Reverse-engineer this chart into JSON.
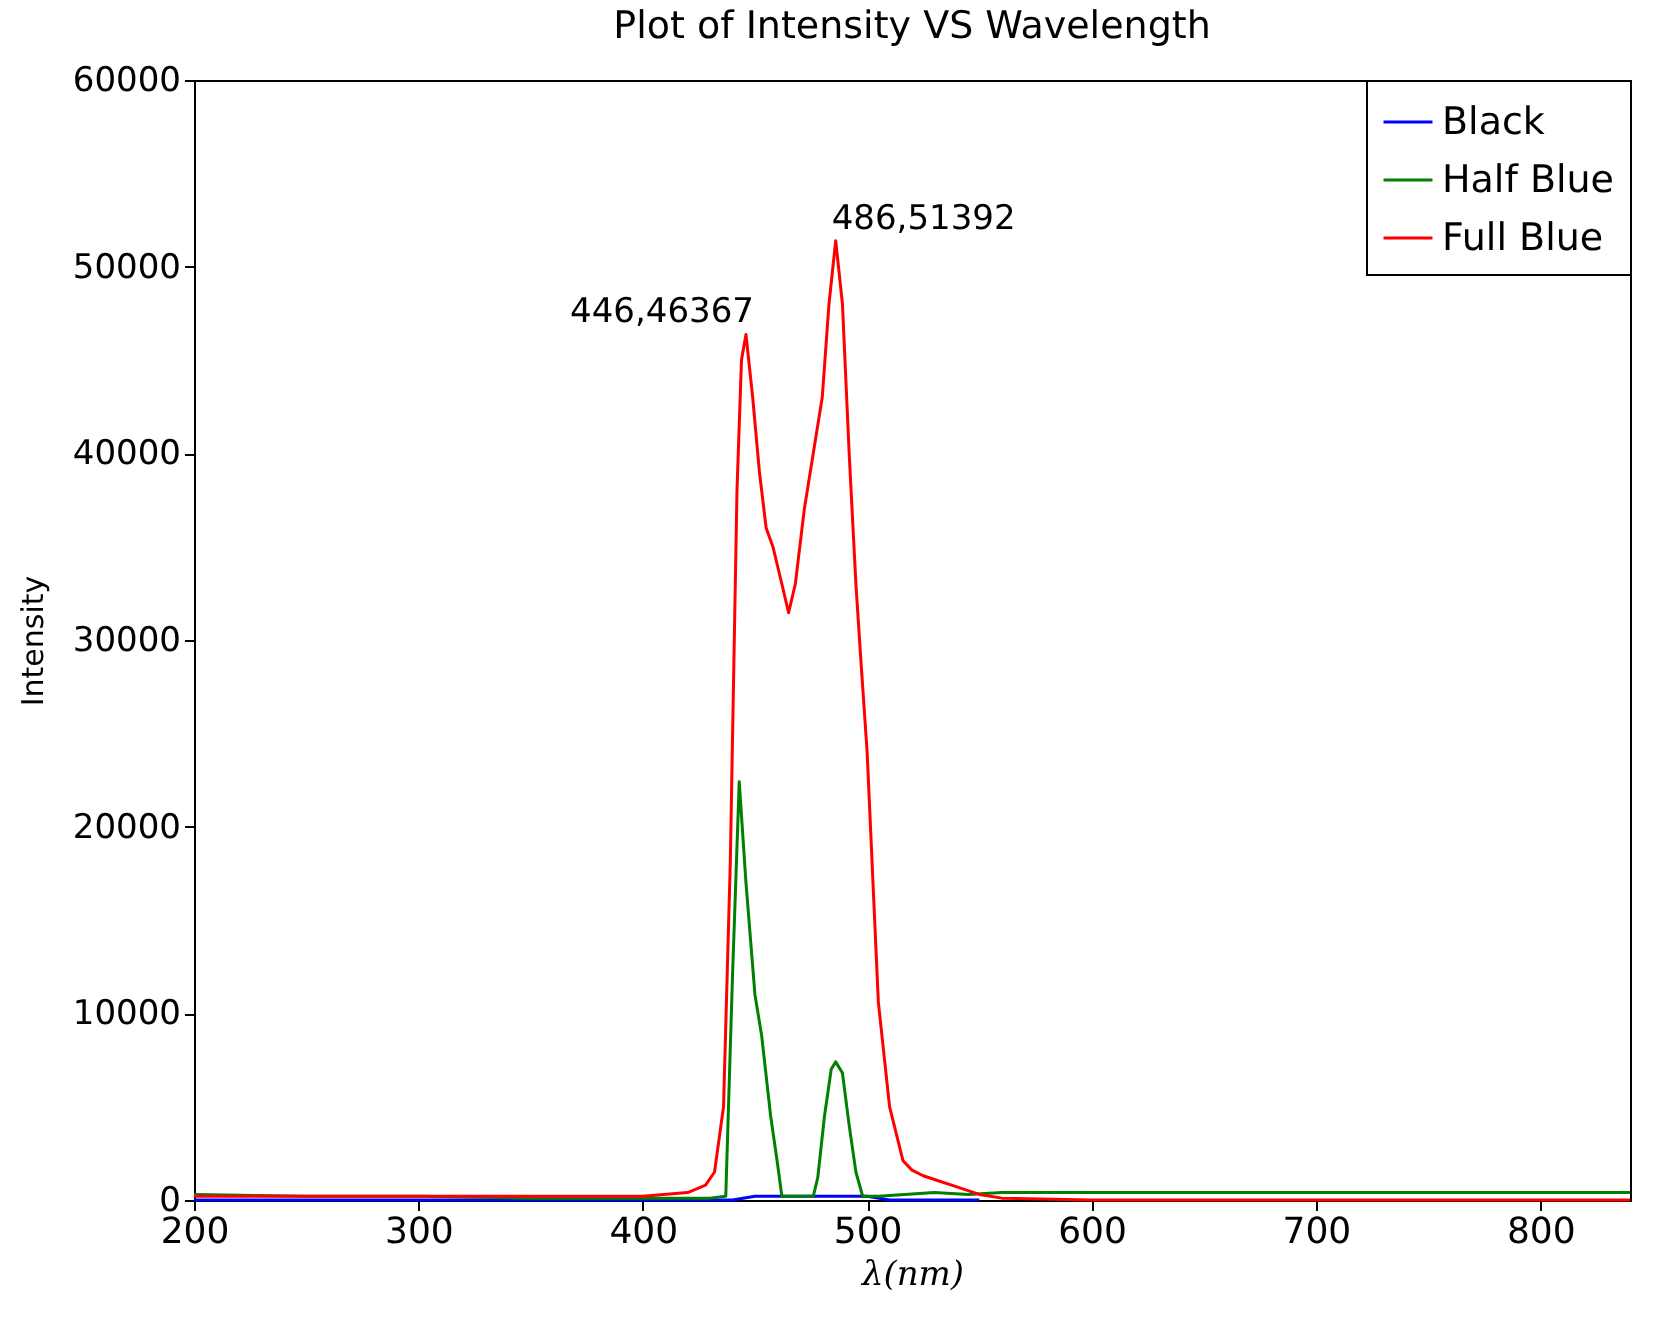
{
  "chart_data": {
    "type": "line",
    "title": "Plot of Intensity VS Wavelength",
    "xlabel": "λ(nm)",
    "ylabel": "Intensity",
    "xlim": [
      200,
      840
    ],
    "ylim": [
      0,
      60000
    ],
    "xticks": [
      200,
      300,
      400,
      500,
      600,
      700,
      800
    ],
    "yticks": [
      0,
      10000,
      20000,
      30000,
      40000,
      50000,
      60000
    ],
    "grid": false,
    "legend": "top right",
    "marker": "none",
    "line_style": "solid",
    "annotations": [
      {
        "text": "446,46367",
        "x": 446,
        "y": 46367
      },
      {
        "text": "486,51392",
        "x": 486,
        "y": 51392
      }
    ],
    "series": [
      {
        "name": "Black",
        "color": "#0000ff",
        "x": [
          200,
          300,
          400,
          430,
          440,
          450,
          470,
          490,
          500,
          510,
          550
        ],
        "values": [
          0,
          0,
          0,
          0,
          0,
          200,
          200,
          200,
          200,
          0,
          0
        ]
      },
      {
        "name": "Half Blue",
        "color": "#008000",
        "x": [
          200,
          250,
          300,
          350,
          400,
          430,
          437,
          440,
          443,
          446,
          450,
          453,
          457,
          460,
          462,
          470,
          476,
          478,
          481,
          484,
          486,
          489,
          492,
          495,
          498,
          505,
          530,
          545,
          560,
          600,
          700,
          840
        ],
        "values": [
          300,
          200,
          200,
          100,
          100,
          100,
          200,
          12000,
          22400,
          17000,
          11000,
          8800,
          4500,
          2000,
          200,
          200,
          200,
          1200,
          4500,
          7000,
          7400,
          6800,
          4000,
          1500,
          200,
          200,
          400,
          300,
          400,
          400,
          400,
          400
        ]
      },
      {
        "name": "Full Blue",
        "color": "#ff0000",
        "x": [
          200,
          300,
          400,
          420,
          428,
          432,
          436,
          439,
          442,
          444,
          446,
          449,
          452,
          455,
          458,
          462,
          465,
          468,
          472,
          476,
          480,
          483,
          486,
          489,
          492,
          495,
          497,
          500,
          505,
          510,
          516,
          520,
          525,
          530,
          540,
          550,
          560,
          600,
          700,
          840
        ],
        "values": [
          200,
          200,
          200,
          400,
          800,
          1500,
          5000,
          18000,
          38000,
          45000,
          46367,
          43000,
          39000,
          36000,
          35000,
          33000,
          31460,
          33000,
          37000,
          40000,
          43000,
          48000,
          51392,
          48000,
          40000,
          33000,
          29300,
          24000,
          10600,
          5000,
          2100,
          1600,
          1300,
          1100,
          700,
          300,
          100,
          0,
          0,
          0
        ]
      }
    ]
  }
}
